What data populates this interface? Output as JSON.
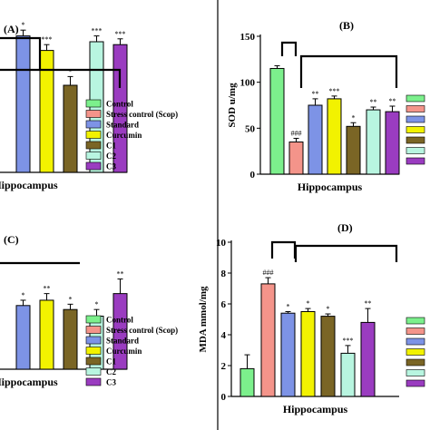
{
  "panel_labels": [
    "(A)",
    "(B)",
    "(C)",
    "(D)"
  ],
  "legend": [
    {
      "label": "Control",
      "color": "#7cf08c"
    },
    {
      "label": "Stress control (Scop)",
      "color": "#f4948a"
    },
    {
      "label": "Standard",
      "color": "#7d93e6"
    },
    {
      "label": "Curcumin",
      "color": "#f2f200"
    },
    {
      "label": "C1",
      "color": "#7a6525"
    },
    {
      "label": "C2",
      "color": "#b8f5e0"
    },
    {
      "label": "C3",
      "color": "#9a3cc0"
    }
  ],
  "chart_data": [
    {
      "panel": "(A)",
      "type": "bar",
      "xlabel": "Hippocampus",
      "ylabel": "",
      "categories": [
        "Control",
        "Stress control (Scop)",
        "Standard",
        "Curcumin",
        "C1",
        "C2",
        "C3"
      ],
      "visible_categories": [
        "Standard",
        "Curcumin",
        "C1",
        "C2",
        "C3"
      ],
      "values": [
        null,
        null,
        47,
        42,
        30,
        45,
        44
      ],
      "errors": [
        null,
        null,
        2,
        2,
        3,
        2,
        2
      ],
      "significance": [
        "",
        "",
        "*",
        "***",
        "*",
        "***",
        "***"
      ]
    },
    {
      "panel": "(B)",
      "type": "bar",
      "xlabel": "Hippocampus",
      "ylabel": "SOD u/mg",
      "ylim": [
        0,
        150
      ],
      "yticks": [
        "0",
        "50",
        "100",
        "150"
      ],
      "categories": [
        "Control",
        "Stress control (Scop)",
        "Standard",
        "Curcumin",
        "C1",
        "C2",
        "C3"
      ],
      "values": [
        115,
        35,
        75,
        82,
        52,
        70,
        68
      ],
      "errors": [
        3,
        4,
        7,
        3,
        4,
        3,
        6
      ],
      "significance": [
        "",
        "###",
        "**",
        "***",
        "*",
        "**",
        "**"
      ]
    },
    {
      "panel": "(C)",
      "type": "bar",
      "xlabel": "Hippocampus",
      "ylabel": "",
      "categories": [
        "Control",
        "Stress control (Scop)",
        "Standard",
        "Curcumin",
        "C1",
        "C2",
        "C3"
      ],
      "visible_categories": [
        "Standard",
        "Curcumin",
        "C1",
        "C2",
        "C3"
      ],
      "values": [
        null,
        null,
        48,
        52,
        45,
        40,
        57
      ],
      "errors": [
        null,
        null,
        4,
        5,
        4,
        5,
        11
      ],
      "significance": [
        "",
        "",
        "*",
        "**",
        "*",
        "*",
        "**"
      ]
    },
    {
      "panel": "(D)",
      "type": "bar",
      "xlabel": "Hippocampus",
      "ylabel": "MDA mmol/mg",
      "ylim": [
        0,
        10
      ],
      "yticks": [
        "0",
        "2",
        "4",
        "6",
        "8",
        "10"
      ],
      "categories": [
        "Control",
        "Stress control (Scop)",
        "Standard",
        "Curcumin",
        "C1",
        "C2",
        "C3"
      ],
      "values": [
        1.8,
        7.3,
        5.4,
        5.5,
        5.2,
        2.8,
        4.8
      ],
      "errors": [
        0.9,
        0.4,
        0.1,
        0.2,
        0.15,
        0.5,
        0.9
      ],
      "significance": [
        "",
        "###",
        "*",
        "*",
        "*",
        "***",
        "**"
      ]
    }
  ]
}
